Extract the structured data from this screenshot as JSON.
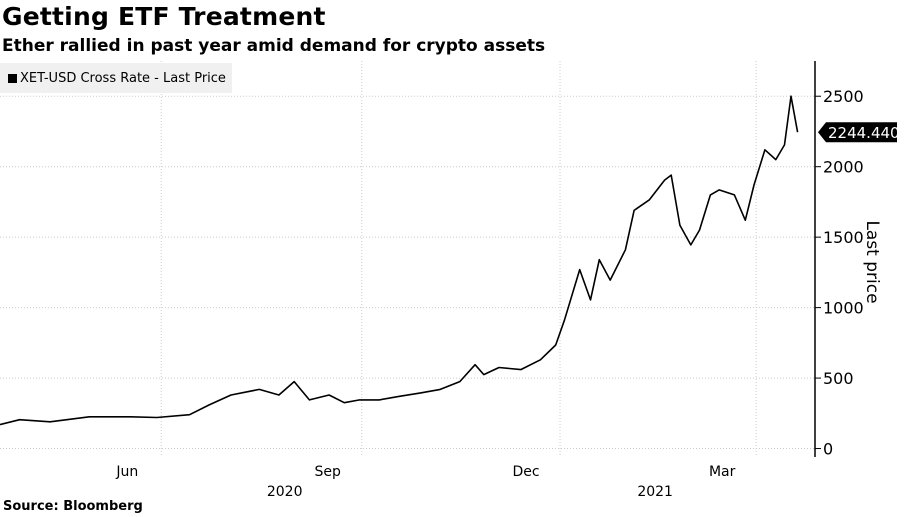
{
  "chart_data": {
    "type": "line",
    "title": "Getting ETF Treatment",
    "subtitle": "Ether rallied in past year amid demand for crypto assets",
    "source": "Source: Bloomberg",
    "ylabel": "Last price",
    "xlabel": "",
    "ylim": [
      -60,
      2750
    ],
    "xlim": [
      "2020-03-19",
      "2021-03-28"
    ],
    "yticks": [
      0,
      500,
      1000,
      1500,
      2000,
      2500
    ],
    "xticks": [
      {
        "label": "Jun",
        "date": "2020-06-01"
      },
      {
        "label": "Sep",
        "date": "2020-09-01"
      },
      {
        "label": "Dec",
        "date": "2020-12-01"
      },
      {
        "label": "Mar",
        "date": "2021-03-01"
      }
    ],
    "year_labels": [
      {
        "label": "2020",
        "date": "2020-08-15"
      },
      {
        "label": "2021",
        "date": "2021-02-01"
      }
    ],
    "grid": true,
    "legend_position": "top-left",
    "last_value_label": "2244.440",
    "series": [
      {
        "name": "XET-USD Cross Rate - Last Price",
        "color": "#000000",
        "points": [
          [
            "2020-03-19",
            170
          ],
          [
            "2020-03-28",
            205
          ],
          [
            "2020-04-11",
            190
          ],
          [
            "2020-04-29",
            225
          ],
          [
            "2020-05-18",
            225
          ],
          [
            "2020-05-30",
            220
          ],
          [
            "2020-06-14",
            240
          ],
          [
            "2020-06-23",
            310
          ],
          [
            "2020-07-03",
            380
          ],
          [
            "2020-07-16",
            420
          ],
          [
            "2020-07-25",
            380
          ],
          [
            "2020-08-01",
            475
          ],
          [
            "2020-08-08",
            345
          ],
          [
            "2020-08-17",
            380
          ],
          [
            "2020-08-24",
            325
          ],
          [
            "2020-08-31",
            345
          ],
          [
            "2020-09-09",
            345
          ],
          [
            "2020-09-18",
            370
          ],
          [
            "2020-09-28",
            395
          ],
          [
            "2020-10-07",
            420
          ],
          [
            "2020-10-16",
            475
          ],
          [
            "2020-10-23",
            595
          ],
          [
            "2020-10-27",
            525
          ],
          [
            "2020-11-03",
            575
          ],
          [
            "2020-11-13",
            560
          ],
          [
            "2020-11-22",
            630
          ],
          [
            "2020-11-29",
            735
          ],
          [
            "2020-12-03",
            910
          ],
          [
            "2020-12-10",
            1270
          ],
          [
            "2020-12-15",
            1055
          ],
          [
            "2020-12-19",
            1340
          ],
          [
            "2020-12-24",
            1195
          ],
          [
            "2020-12-31",
            1410
          ],
          [
            "2021-01-04",
            1690
          ],
          [
            "2021-01-11",
            1765
          ],
          [
            "2021-01-18",
            1905
          ],
          [
            "2021-01-21",
            1940
          ],
          [
            "2021-01-25",
            1585
          ],
          [
            "2021-01-30",
            1445
          ],
          [
            "2021-02-03",
            1550
          ],
          [
            "2021-02-08",
            1800
          ],
          [
            "2021-02-12",
            1835
          ],
          [
            "2021-02-19",
            1800
          ],
          [
            "2021-02-24",
            1620
          ],
          [
            "2021-02-28",
            1870
          ],
          [
            "2021-03-05",
            2120
          ],
          [
            "2021-03-10",
            2050
          ],
          [
            "2021-03-14",
            2155
          ],
          [
            "2021-03-17",
            2500
          ],
          [
            "2021-03-20",
            2244.44
          ]
        ]
      }
    ]
  }
}
